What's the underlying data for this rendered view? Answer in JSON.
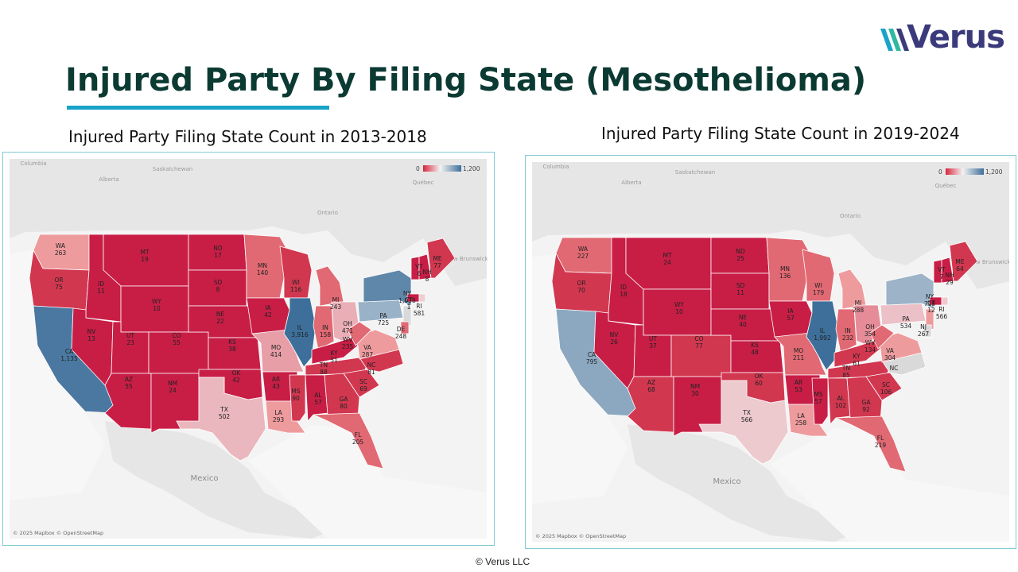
{
  "brand": {
    "name": "Verus"
  },
  "header": {
    "title": "Injured Party By Filing State (Mesothelioma)"
  },
  "footer": {
    "copyright": "© Verus LLC"
  },
  "map_common": {
    "attribution": "© 2025 Mapbox © OpenStreetMap",
    "country_label": "Mexico",
    "geo_labels": [
      "Columbia",
      "Alberta",
      "Saskatchewan",
      "Ontario",
      "Québec",
      "New Brunswick"
    ],
    "legend": {
      "min_label": "0",
      "max_label": "1,200",
      "low_color": "#d7263d",
      "mid_color": "#f2f2f2",
      "high_color": "#3d6f9a"
    }
  },
  "maps": [
    {
      "subtitle": "Injured Party Filing State Count in 2013-2018",
      "states": [
        {
          "code": "WA",
          "value": 263
        },
        {
          "code": "OR",
          "value": 75
        },
        {
          "code": "CA",
          "value": 1135
        },
        {
          "code": "ID",
          "value": 11
        },
        {
          "code": "NV",
          "value": 13
        },
        {
          "code": "MT",
          "value": 19
        },
        {
          "code": "WY",
          "value": 10
        },
        {
          "code": "UT",
          "value": 23
        },
        {
          "code": "AZ",
          "value": 55
        },
        {
          "code": "CO",
          "value": 55
        },
        {
          "code": "NM",
          "value": 24
        },
        {
          "code": "ND",
          "value": 17
        },
        {
          "code": "SD",
          "value": 8
        },
        {
          "code": "NE",
          "value": 22
        },
        {
          "code": "KS",
          "value": 38
        },
        {
          "code": "OK",
          "value": 42
        },
        {
          "code": "TX",
          "value": 502
        },
        {
          "code": "MN",
          "value": 140
        },
        {
          "code": "IA",
          "value": 42
        },
        {
          "code": "MO",
          "value": 414
        },
        {
          "code": "AR",
          "value": 43
        },
        {
          "code": "LA",
          "value": 293
        },
        {
          "code": "WI",
          "value": 116
        },
        {
          "code": "IL",
          "value": 3916
        },
        {
          "code": "MI",
          "value": 243
        },
        {
          "code": "IN",
          "value": 158
        },
        {
          "code": "OH",
          "value": 471
        },
        {
          "code": "KY",
          "value": 51
        },
        {
          "code": "TN",
          "value": 88
        },
        {
          "code": "MS",
          "value": 90
        },
        {
          "code": "AL",
          "value": 57
        },
        {
          "code": "GA",
          "value": 80
        },
        {
          "code": "FL",
          "value": 205
        },
        {
          "code": "SC",
          "value": 69
        },
        {
          "code": "NC",
          "value": 81
        },
        {
          "code": "VA",
          "value": 287
        },
        {
          "code": "WV",
          "value": 235
        },
        {
          "code": "PA",
          "value": 725
        },
        {
          "code": "NY",
          "value": 1028
        },
        {
          "code": "VT",
          "value": 6
        },
        {
          "code": "NH",
          "value": 8
        },
        {
          "code": "ME",
          "value": 77
        },
        {
          "code": "CT",
          "value": 1
        },
        {
          "code": "RI",
          "value": 581
        },
        {
          "code": "DE",
          "value": 248
        }
      ]
    },
    {
      "subtitle": "Injured Party Filing State Count in 2019-2024",
      "states": [
        {
          "code": "WA",
          "value": 227
        },
        {
          "code": "OR",
          "value": 70
        },
        {
          "code": "CA",
          "value": 795
        },
        {
          "code": "ID",
          "value": 18
        },
        {
          "code": "NV",
          "value": 26
        },
        {
          "code": "MT",
          "value": 24
        },
        {
          "code": "WY",
          "value": 10
        },
        {
          "code": "UT",
          "value": 37
        },
        {
          "code": "AZ",
          "value": 68
        },
        {
          "code": "CO",
          "value": 77
        },
        {
          "code": "NM",
          "value": 30
        },
        {
          "code": "ND",
          "value": 25
        },
        {
          "code": "SD",
          "value": 11
        },
        {
          "code": "NE",
          "value": 40
        },
        {
          "code": "KS",
          "value": 48
        },
        {
          "code": "OK",
          "value": 60
        },
        {
          "code": "TX",
          "value": 566
        },
        {
          "code": "MN",
          "value": 136
        },
        {
          "code": "IA",
          "value": 57
        },
        {
          "code": "MO",
          "value": 211
        },
        {
          "code": "AR",
          "value": 53
        },
        {
          "code": "LA",
          "value": 258
        },
        {
          "code": "WI",
          "value": 179
        },
        {
          "code": "IL",
          "value": 1992
        },
        {
          "code": "MI",
          "value": 288
        },
        {
          "code": "IN",
          "value": 232
        },
        {
          "code": "OH",
          "value": 354
        },
        {
          "code": "KY",
          "value": 61
        },
        {
          "code": "TN",
          "value": 85
        },
        {
          "code": "MS",
          "value": 57
        },
        {
          "code": "AL",
          "value": 102
        },
        {
          "code": "GA",
          "value": 92
        },
        {
          "code": "FL",
          "value": 219
        },
        {
          "code": "SC",
          "value": 106
        },
        {
          "code": "NC",
          "value": null
        },
        {
          "code": "VA",
          "value": 304
        },
        {
          "code": "WV",
          "value": 134
        },
        {
          "code": "PA",
          "value": 534
        },
        {
          "code": "NY",
          "value": 718
        },
        {
          "code": "VT",
          "value": 7
        },
        {
          "code": "NH",
          "value": 29
        },
        {
          "code": "ME",
          "value": 64
        },
        {
          "code": "NJ",
          "value": 267
        },
        {
          "code": "CT",
          "value": 12
        },
        {
          "code": "RI",
          "value": 566
        }
      ]
    }
  ]
}
